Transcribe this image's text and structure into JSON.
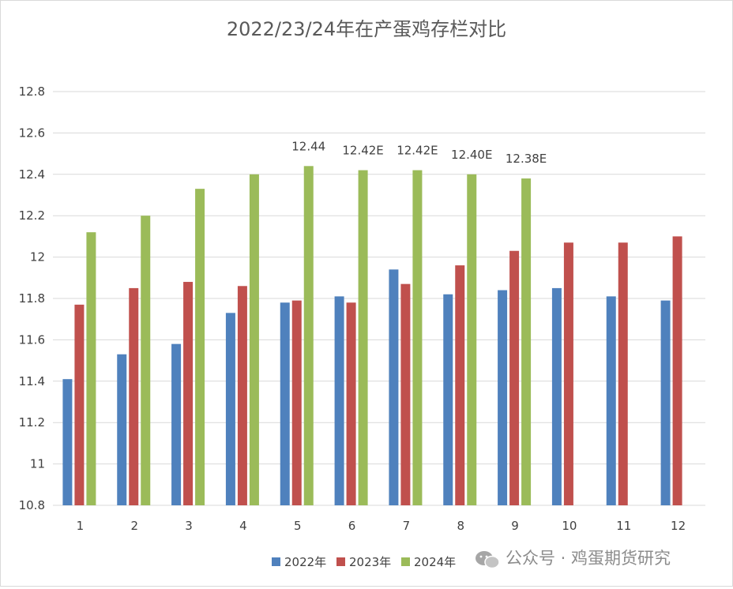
{
  "chart_data": {
    "type": "bar",
    "title": "2022/23/24年在产蛋鸡存栏对比",
    "xlabel": "",
    "ylabel": "",
    "categories": [
      "1",
      "2",
      "3",
      "4",
      "5",
      "6",
      "7",
      "8",
      "9",
      "10",
      "11",
      "12"
    ],
    "ylim": [
      10.8,
      12.8
    ],
    "yticks": [
      "10.8",
      "11",
      "11.2",
      "11.4",
      "11.6",
      "11.8",
      "12",
      "12.2",
      "12.4",
      "12.6",
      "12.8"
    ],
    "grid": true,
    "legend_position": "bottom",
    "series": [
      {
        "name": "2022年",
        "color": "#4f81bd",
        "values": [
          11.41,
          11.53,
          11.58,
          11.73,
          11.78,
          11.81,
          11.94,
          11.82,
          11.84,
          11.85,
          11.81,
          11.79
        ]
      },
      {
        "name": "2023年",
        "color": "#c0504d",
        "values": [
          11.77,
          11.85,
          11.88,
          11.86,
          11.79,
          11.78,
          11.87,
          11.96,
          12.03,
          12.07,
          12.07,
          12.1
        ]
      },
      {
        "name": "2024年",
        "color": "#9bbb59",
        "values": [
          12.12,
          12.2,
          12.33,
          12.4,
          12.44,
          12.42,
          12.42,
          12.4,
          12.38,
          null,
          null,
          null
        ],
        "data_labels": [
          "",
          "",
          "",
          "",
          "12.44",
          "12.42E",
          "12.42E",
          "12.40E",
          "12.38E",
          "",
          "",
          ""
        ]
      }
    ]
  },
  "watermark": {
    "text": "公众号 · 鸡蛋期货研究",
    "icon": "wechat-icon"
  }
}
